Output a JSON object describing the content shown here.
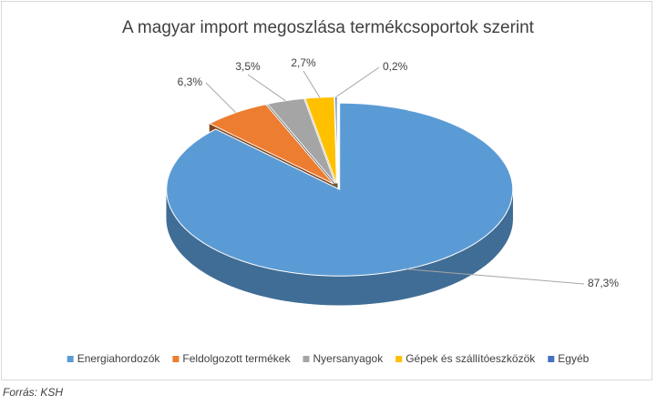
{
  "chart_data": {
    "type": "pie3d",
    "title": "A magyar import megoszlása termékcsoportok szerint",
    "categories": [
      "Energiahordozók",
      "Feldolgozott termékek",
      "Nyersanyagok",
      "Gépek és szállítóeszközök",
      "Egyéb"
    ],
    "values": [
      87.3,
      6.3,
      3.5,
      2.7,
      0.2
    ],
    "value_labels": [
      "87,3%",
      "6,3%",
      "3,5%",
      "2,7%",
      "0,2%"
    ],
    "colors": [
      "#5b9bd5",
      "#ed7d31",
      "#a5a5a5",
      "#ffc000",
      "#4472c4"
    ],
    "legend": "bottom",
    "source": "Forrás: KSH"
  }
}
